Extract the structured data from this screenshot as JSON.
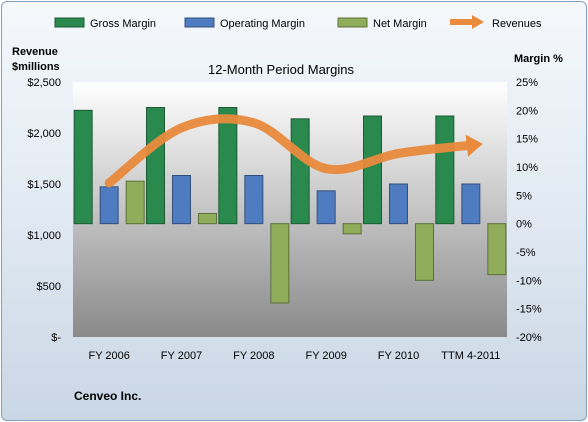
{
  "chart_data": {
    "type": "bar",
    "title": "12-Month Period Margins",
    "company": "Cenveo Inc.",
    "left_axis_label": [
      "Revenue",
      "$millions"
    ],
    "right_axis_label": "Margin %",
    "categories": [
      "FY 2006",
      "FY 2007",
      "FY 2008",
      "FY 2009",
      "FY 2010",
      "TTM 4-2011"
    ],
    "left_axis": {
      "min": 0,
      "max": 2500,
      "step": 500,
      "tick_labels": [
        "$-",
        "$500",
        "$1,000",
        "$1,500",
        "$2,000",
        "$2,500"
      ]
    },
    "right_axis": {
      "min": -20,
      "max": 25,
      "step": 5,
      "tick_labels": [
        "-20%",
        "-15%",
        "-10%",
        "-5%",
        "0%",
        "5%",
        "10%",
        "15%",
        "20%",
        "25%"
      ]
    },
    "margin_series": [
      {
        "name": "Gross Margin",
        "color": "#2a8a4e",
        "values": [
          20.0,
          20.5,
          20.5,
          18.5,
          19.0,
          19.0
        ]
      },
      {
        "name": "Operating Margin",
        "color": "#4f7bc0",
        "values": [
          6.5,
          8.5,
          8.5,
          5.8,
          7.0,
          7.0
        ]
      },
      {
        "name": "Net Margin",
        "color": "#8fad5a",
        "values": [
          7.5,
          1.8,
          -14.0,
          -1.8,
          -10.0,
          -9.0
        ]
      }
    ],
    "line_series": {
      "name": "Revenues",
      "color": "#e98a3c",
      "values": [
        1510,
        2050,
        2100,
        1650,
        1800,
        1880
      ]
    },
    "legend_position": "top",
    "grid": false
  }
}
